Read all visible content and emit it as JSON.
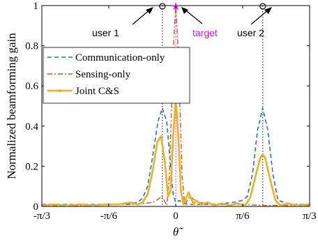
{
  "chart_data": {
    "type": "line",
    "ylabel": "Normalized beamforming gain",
    "xlabel": "θ̃",
    "xlim": [
      -1.0472,
      1.0472
    ],
    "ylim": [
      0,
      1
    ],
    "x_tick_labels": [
      "-π/3",
      "-π/6",
      "0",
      "π/6",
      "π/3"
    ],
    "y_tick_labels": [
      "0",
      "0.2",
      "0.4",
      "0.6",
      "0.8",
      "1"
    ],
    "grid": false,
    "legend_position": "upper-left",
    "markers": {
      "user1": {
        "label": "user 1",
        "theta": -0.1047
      },
      "target": {
        "label": "target",
        "theta": 0
      },
      "user2": {
        "label": "user 2",
        "theta": 0.6807
      }
    },
    "series": [
      {
        "name": "Communication-only",
        "color": "#1f77b4",
        "style": "dashed",
        "points": [
          [
            -1.047,
            0.01
          ],
          [
            -0.9,
            0.01
          ],
          [
            -0.7,
            0.01
          ],
          [
            -0.5,
            0.01
          ],
          [
            -0.35,
            0.015
          ],
          [
            -0.3,
            0.02
          ],
          [
            -0.26,
            0.04
          ],
          [
            -0.22,
            0.1
          ],
          [
            -0.18,
            0.25
          ],
          [
            -0.14,
            0.42
          ],
          [
            -0.105,
            0.49
          ],
          [
            -0.07,
            0.42
          ],
          [
            -0.04,
            0.2
          ],
          [
            -0.02,
            0.06
          ],
          [
            0,
            0.02
          ],
          [
            0.03,
            0.03
          ],
          [
            0.06,
            0.015
          ],
          [
            0.1,
            0.01
          ],
          [
            0.2,
            0.01
          ],
          [
            0.3,
            0.01
          ],
          [
            0.45,
            0.02
          ],
          [
            0.52,
            0.03
          ],
          [
            0.56,
            0.05
          ],
          [
            0.6,
            0.16
          ],
          [
            0.64,
            0.38
          ],
          [
            0.68,
            0.49
          ],
          [
            0.72,
            0.38
          ],
          [
            0.76,
            0.16
          ],
          [
            0.8,
            0.03
          ],
          [
            0.9,
            0.01
          ],
          [
            1.047,
            0.01
          ]
        ]
      },
      {
        "name": "Sensing-only",
        "color": "#d95319",
        "style": "dashdot",
        "points": [
          [
            -1.047,
            0.005
          ],
          [
            -0.7,
            0.005
          ],
          [
            -0.5,
            0.01
          ],
          [
            -0.35,
            0.01
          ],
          [
            -0.25,
            0.015
          ],
          [
            -0.18,
            0.02
          ],
          [
            -0.14,
            0.035
          ],
          [
            -0.11,
            0.05
          ],
          [
            -0.09,
            0.03
          ],
          [
            -0.07,
            0.005
          ],
          [
            -0.05,
            0.15
          ],
          [
            -0.035,
            0.45
          ],
          [
            -0.018,
            0.8
          ],
          [
            0,
            1.0
          ],
          [
            0.018,
            0.8
          ],
          [
            0.035,
            0.45
          ],
          [
            0.05,
            0.15
          ],
          [
            0.07,
            0.005
          ],
          [
            0.09,
            0.03
          ],
          [
            0.11,
            0.05
          ],
          [
            0.14,
            0.035
          ],
          [
            0.18,
            0.02
          ],
          [
            0.3,
            0.01
          ],
          [
            0.5,
            0.01
          ],
          [
            0.7,
            0.005
          ],
          [
            1.047,
            0.005
          ]
        ]
      },
      {
        "name": "Joint C&S",
        "color": "#edb120",
        "style": "solid-marker",
        "points": [
          [
            -1.047,
            0.005
          ],
          [
            -0.95,
            0.01
          ],
          [
            -0.85,
            0.005
          ],
          [
            -0.75,
            0.01
          ],
          [
            -0.65,
            0.005
          ],
          [
            -0.55,
            0.01
          ],
          [
            -0.45,
            0.01
          ],
          [
            -0.35,
            0.02
          ],
          [
            -0.3,
            0.01
          ],
          [
            -0.26,
            0.02
          ],
          [
            -0.22,
            0.06
          ],
          [
            -0.18,
            0.18
          ],
          [
            -0.145,
            0.32
          ],
          [
            -0.115,
            0.35
          ],
          [
            -0.085,
            0.22
          ],
          [
            -0.06,
            0.05
          ],
          [
            -0.04,
            0.08
          ],
          [
            -0.02,
            0.35
          ],
          [
            0,
            0.54
          ],
          [
            0.02,
            0.35
          ],
          [
            0.04,
            0.08
          ],
          [
            0.06,
            0.01
          ],
          [
            0.08,
            0.04
          ],
          [
            0.1,
            0.07
          ],
          [
            0.12,
            0.04
          ],
          [
            0.14,
            0.01
          ],
          [
            0.16,
            0.03
          ],
          [
            0.2,
            0.01
          ],
          [
            0.25,
            0.02
          ],
          [
            0.3,
            0.005
          ],
          [
            0.36,
            0.015
          ],
          [
            0.42,
            0.005
          ],
          [
            0.48,
            0.015
          ],
          [
            0.54,
            0.005
          ],
          [
            0.58,
            0.04
          ],
          [
            0.62,
            0.14
          ],
          [
            0.66,
            0.24
          ],
          [
            0.68,
            0.26
          ],
          [
            0.7,
            0.24
          ],
          [
            0.74,
            0.13
          ],
          [
            0.78,
            0.03
          ],
          [
            0.82,
            0.005
          ],
          [
            0.88,
            0.015
          ],
          [
            0.95,
            0.005
          ],
          [
            1.047,
            0.01
          ]
        ]
      }
    ]
  }
}
